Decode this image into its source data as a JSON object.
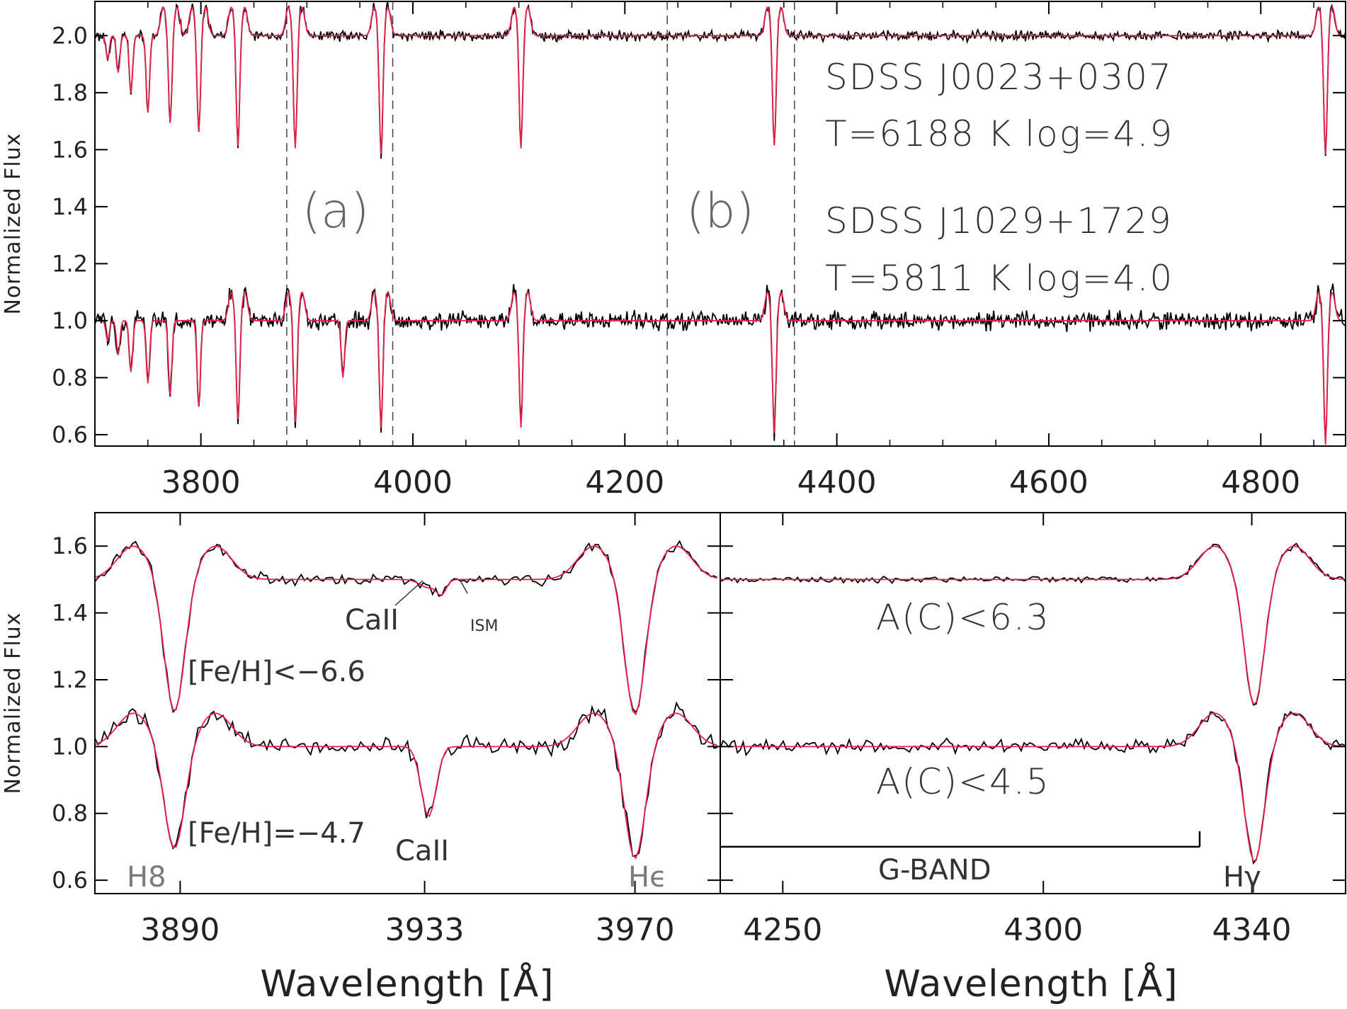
{
  "chart_data": [
    {
      "id": "top",
      "type": "line",
      "ylabel": "Normalized Flux",
      "xlim": [
        3700,
        4880
      ],
      "ylim": [
        0.56,
        2.12
      ],
      "xticks": [
        3800,
        4000,
        4200,
        4400,
        4600,
        4800
      ],
      "yticks": [
        0.6,
        0.8,
        1.0,
        1.2,
        1.4,
        1.6,
        1.8,
        2.0
      ],
      "ytick_labels": [
        "0.6",
        "0.8",
        "1.0",
        "1.2",
        "1.4",
        "1.6",
        "1.8",
        "2.0"
      ],
      "regions": [
        {
          "label": "(a)",
          "x": [
            3881,
            3981
          ]
        },
        {
          "label": "(b)",
          "x": [
            4240,
            4360
          ]
        }
      ],
      "series": [
        {
          "name": "SDSS J0023+0307",
          "offset": 2.0,
          "noise": 0.012,
          "lines": [
            {
              "x": 3712,
              "depth": 0.08
            },
            {
              "x": 3722,
              "depth": 0.13
            },
            {
              "x": 3734,
              "depth": 0.2
            },
            {
              "x": 3750,
              "depth": 0.27
            },
            {
              "x": 3771,
              "depth": 0.31
            },
            {
              "x": 3798,
              "depth": 0.34
            },
            {
              "x": 3835,
              "depth": 0.39
            },
            {
              "x": 3889,
              "depth": 0.4
            },
            {
              "x": 3970,
              "depth": 0.42
            },
            {
              "x": 4102,
              "depth": 0.4
            },
            {
              "x": 4341,
              "depth": 0.39
            },
            {
              "x": 4861,
              "depth": 0.42
            }
          ]
        },
        {
          "name": "SDSS J1029+1729",
          "offset": 1.0,
          "noise": 0.022,
          "lines": [
            {
              "x": 3712,
              "depth": 0.07
            },
            {
              "x": 3722,
              "depth": 0.12
            },
            {
              "x": 3734,
              "depth": 0.18
            },
            {
              "x": 3750,
              "depth": 0.22
            },
            {
              "x": 3771,
              "depth": 0.26
            },
            {
              "x": 3798,
              "depth": 0.3
            },
            {
              "x": 3835,
              "depth": 0.35
            },
            {
              "x": 3889,
              "depth": 0.36
            },
            {
              "x": 3934,
              "depth": 0.2
            },
            {
              "x": 3970,
              "depth": 0.38
            },
            {
              "x": 4102,
              "depth": 0.38
            },
            {
              "x": 4341,
              "depth": 0.4
            },
            {
              "x": 4861,
              "depth": 0.44
            }
          ]
        }
      ],
      "annotations": [
        {
          "text": "SDSS J0023+0307",
          "x": 4560,
          "y": 1.89
        },
        {
          "text": "T=6188 K   log=4.9",
          "x": 4560,
          "y": 1.69
        },
        {
          "text": "SDSS J1029+1729",
          "x": 4560,
          "y": 1.39
        },
        {
          "text": "T=5811 K   log=4.0",
          "x": 4560,
          "y": 1.19
        }
      ]
    },
    {
      "id": "bottom-left",
      "type": "line",
      "ylabel": "Normalized Flux",
      "xlabel": "Wavelength [Å]",
      "xlim": [
        3875,
        3985
      ],
      "ylim": [
        0.56,
        1.7
      ],
      "xticks": [
        3890,
        3933,
        3970
      ],
      "yticks": [
        0.6,
        0.8,
        1.0,
        1.2,
        1.4,
        1.6
      ],
      "ytick_labels": [
        "0.6",
        "0.8",
        "1.0",
        "1.2",
        "1.4",
        "1.6"
      ],
      "series": [
        {
          "offset": 1.5,
          "noise": 0.012,
          "lines": [
            {
              "x": 3889,
              "depth": 0.4,
              "width": 1.8
            },
            {
              "x": 3933.7,
              "depth": 0.025,
              "width": 1.5
            },
            {
              "x": 3936,
              "depth": 0.04,
              "width": 0.8
            },
            {
              "x": 3970,
              "depth": 0.41,
              "width": 1.8
            }
          ]
        },
        {
          "offset": 1.0,
          "noise": 0.02,
          "lines": [
            {
              "x": 3889,
              "depth": 0.31,
              "width": 1.8
            },
            {
              "x": 3933.7,
              "depth": 0.21,
              "width": 1.3
            },
            {
              "x": 3970,
              "depth": 0.34,
              "width": 1.8
            }
          ]
        }
      ],
      "annotations": [
        {
          "text": "CaII",
          "x": 3920.5,
          "y": 1.41
        },
        {
          "text": "ISM",
          "x": 3938.5,
          "y": 1.41
        },
        {
          "text": "[Fe/H]<−6.6",
          "x": 3882,
          "y": 1.21
        },
        {
          "text": "[Fe/H]=−4.7",
          "x": 3882,
          "y": 0.74
        },
        {
          "text": "CaII",
          "x": 3926,
          "y": 0.71
        },
        {
          "text": "H8",
          "x": 3885.5,
          "y": 0.6
        },
        {
          "text": "Hϵ",
          "x": 3966.5,
          "y": 0.6
        }
      ]
    },
    {
      "id": "bottom-right",
      "type": "line",
      "xlabel": "Wavelength [Å]",
      "xlim": [
        4238,
        4358
      ],
      "ylim": [
        0.56,
        1.7
      ],
      "xticks": [
        4250,
        4300,
        4340
      ],
      "yticks": [
        0.6,
        0.8,
        1.0,
        1.2,
        1.4,
        1.6
      ],
      "series": [
        {
          "offset": 1.5,
          "noise": 0.006,
          "lines": [
            {
              "x": 4340.5,
              "depth": 0.38,
              "width": 1.9
            }
          ]
        },
        {
          "offset": 1.0,
          "noise": 0.014,
          "lines": [
            {
              "x": 4340.5,
              "depth": 0.35,
              "width": 1.9
            }
          ]
        }
      ],
      "gband": {
        "label": "G-BAND",
        "x": [
          4238,
          4330
        ],
        "y": 0.7
      },
      "annotations": [
        {
          "text": "A(C)<6.3",
          "x": 4256,
          "y": 1.36
        },
        {
          "text": "A(C)<4.5",
          "x": 4256,
          "y": 0.88
        },
        {
          "text": "Hγ",
          "x": 4337.5,
          "y": 0.6
        }
      ]
    }
  ],
  "colors": {
    "observed": "#000000",
    "model": "#e8204a",
    "frame": "#000000",
    "region_line": "#444444"
  }
}
